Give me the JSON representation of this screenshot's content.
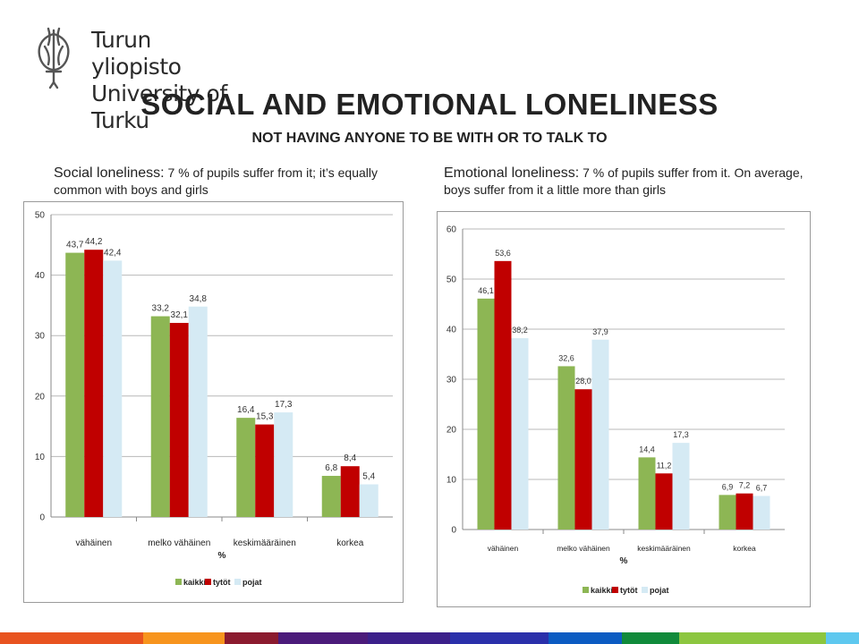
{
  "logo": {
    "icon": "university-torch-icon",
    "line1": "Turun yliopisto",
    "line2": "University of Turku"
  },
  "title": "SOCIAL AND EMOTIONAL LONELINESS",
  "subtitle": "NOT HAVING ANYONE TO BE WITH OR TO TALK TO",
  "captions": {
    "left_lead": "Social loneliness:",
    "left_rest": " 7 % of pupils suffer from it; it’s equally common with boys and girls",
    "right_lead": "Emotional loneliness:",
    "right_rest": " 7 % of pupils suffer from it. On average, boys suffer from it a little more than girls"
  },
  "colors": {
    "kaikki": "#8db654",
    "tytot": "#c00000",
    "pojat": "#d5eaf4",
    "grid": "#b8b8b8",
    "axis": "#8a8a8a"
  },
  "footer_colors": [
    "#e8531f",
    "#f7941d",
    "#8b1a2e",
    "#4b1a7a",
    "#3b1f8a",
    "#2a2faa",
    "#0b5bc2",
    "#108a3a",
    "#8cc63f",
    "#5ec8ef"
  ],
  "chart_data": [
    {
      "type": "bar",
      "title": "",
      "xlabel": "%",
      "ylabel": "",
      "categories": [
        "vähäinen",
        "melko vähäinen",
        "keskimääräinen",
        "korkea"
      ],
      "ylim": [
        0,
        50
      ],
      "yticks": [
        0,
        10,
        20,
        30,
        40,
        50
      ],
      "grid": true,
      "legend": "bottom",
      "series": [
        {
          "name": "kaikki",
          "values": [
            43.7,
            33.2,
            16.4,
            6.8
          ],
          "labels": [
            "43,7",
            "33,2",
            "16,4",
            "6,8"
          ]
        },
        {
          "name": "tytöt",
          "values": [
            44.2,
            32.1,
            15.3,
            8.4
          ],
          "labels": [
            "44,2",
            "32,1",
            "15,3",
            "8,4"
          ]
        },
        {
          "name": "pojat",
          "values": [
            42.4,
            34.8,
            17.3,
            5.4
          ],
          "labels": [
            "42,4",
            "34,8",
            "17,3",
            "5,4"
          ]
        }
      ]
    },
    {
      "type": "bar",
      "title": "",
      "xlabel": "%",
      "ylabel": "",
      "categories": [
        "vähäinen",
        "melko vähäinen",
        "keskimääräinen",
        "korkea"
      ],
      "ylim": [
        0,
        60
      ],
      "yticks": [
        0,
        10,
        20,
        30,
        40,
        50,
        60
      ],
      "grid": true,
      "legend": "bottom",
      "series": [
        {
          "name": "kaikki",
          "values": [
            46.1,
            32.6,
            14.4,
            6.9
          ],
          "labels": [
            "46,1",
            "32,6",
            "14,4",
            "6,9"
          ]
        },
        {
          "name": "tytöt",
          "values": [
            53.6,
            28.0,
            11.2,
            7.2
          ],
          "labels": [
            "53,6",
            "28,0",
            "11,2",
            "7,2"
          ]
        },
        {
          "name": "pojat",
          "values": [
            38.2,
            37.9,
            17.3,
            6.7
          ],
          "labels": [
            "38,2",
            "37,9",
            "17,3",
            "6,7"
          ]
        }
      ]
    }
  ]
}
